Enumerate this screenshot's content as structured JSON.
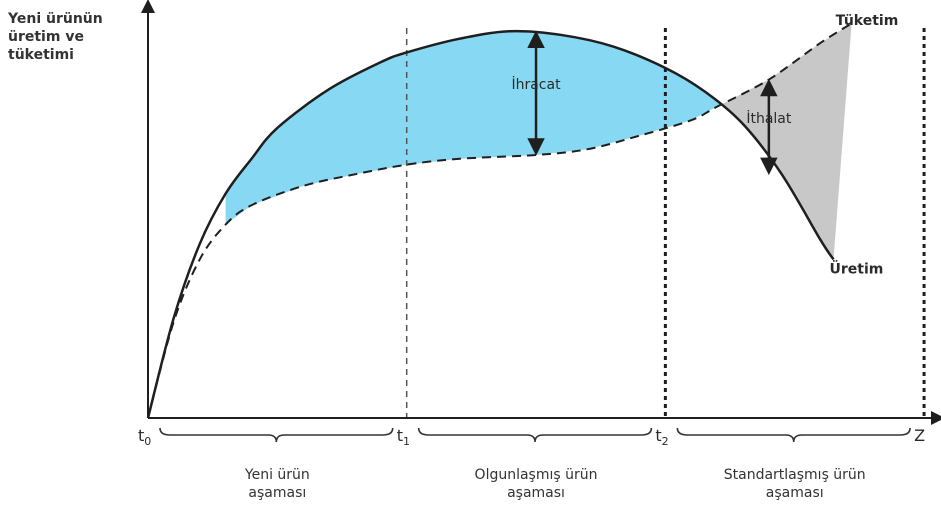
{
  "chart_data": {
    "type": "area",
    "ylabel": "Yeni ürünün\nüretim ve\ntüketimi",
    "x_ticks": [
      {
        "id": "t0",
        "label": "t",
        "sub": "0",
        "x": 0
      },
      {
        "id": "t1",
        "label": "t",
        "sub": "1",
        "x": 1
      },
      {
        "id": "t2",
        "label": "t",
        "sub": "2",
        "x": 2
      },
      {
        "id": "z",
        "label": "Z",
        "sub": "",
        "x": 3
      }
    ],
    "xlim": [
      0,
      3.05
    ],
    "ylim": [
      0,
      1.06
    ],
    "series": [
      {
        "name": "Üretim",
        "style": "solid",
        "points": [
          [
            0,
            0
          ],
          [
            0.1,
            0.26
          ],
          [
            0.2,
            0.45
          ],
          [
            0.3,
            0.58
          ],
          [
            0.4,
            0.67
          ],
          [
            0.5,
            0.75
          ],
          [
            0.7,
            0.85
          ],
          [
            0.9,
            0.92
          ],
          [
            1.0,
            0.945
          ],
          [
            1.2,
            0.98
          ],
          [
            1.4,
            1.0
          ],
          [
            1.6,
            0.99
          ],
          [
            1.8,
            0.96
          ],
          [
            2.0,
            0.905
          ],
          [
            2.15,
            0.845
          ],
          [
            2.3,
            0.76
          ],
          [
            2.45,
            0.63
          ],
          [
            2.6,
            0.46
          ],
          [
            2.65,
            0.41
          ]
        ]
      },
      {
        "name": "Tüketim",
        "style": "dashed",
        "points": [
          [
            0,
            0
          ],
          [
            0.1,
            0.25
          ],
          [
            0.2,
            0.41
          ],
          [
            0.3,
            0.5
          ],
          [
            0.4,
            0.55
          ],
          [
            0.6,
            0.6
          ],
          [
            0.8,
            0.63
          ],
          [
            1.0,
            0.655
          ],
          [
            1.2,
            0.67
          ],
          [
            1.5,
            0.68
          ],
          [
            1.7,
            0.695
          ],
          [
            1.9,
            0.73
          ],
          [
            2.1,
            0.77
          ],
          [
            2.2,
            0.805
          ],
          [
            2.4,
            0.875
          ],
          [
            2.6,
            0.97
          ],
          [
            2.72,
            1.02
          ]
        ]
      }
    ],
    "annotations": [
      {
        "id": "ihracat",
        "text": "İhracat",
        "x": 1.5,
        "y_from": 0.68,
        "y_to": 1.0
      },
      {
        "id": "ithalat",
        "text": "İthalat",
        "x": 2.4,
        "y_from": 0.63,
        "y_to": 0.875
      }
    ],
    "phases": [
      {
        "id": "yeni",
        "label": "Yeni ürün\naşaması",
        "from": 0,
        "to": 1
      },
      {
        "id": "olgun",
        "label": "Olgunlaşmış ürün\naşaması",
        "from": 1,
        "to": 2
      },
      {
        "id": "standart",
        "label": "Standartlaşmış ürün\naşaması",
        "from": 2,
        "to": 3
      }
    ],
    "colors": {
      "export_fill": "#87d8f2",
      "import_fill": "#c8c8c8",
      "line": "#1f1f1f",
      "axis": "#1f1f1f"
    }
  }
}
